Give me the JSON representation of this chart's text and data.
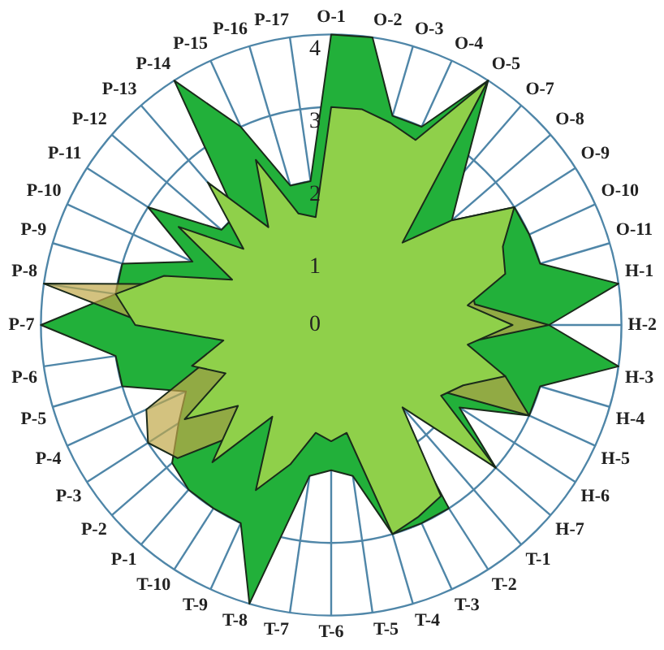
{
  "chart_data": {
    "type": "radar",
    "categories": [
      "O-1",
      "O-2",
      "O-3",
      "O-4",
      "O-5",
      "O-7",
      "O-8",
      "O-9",
      "O-10",
      "O-11",
      "H-1",
      "H-2",
      "H-3",
      "H-4",
      "H-5",
      "H-6",
      "H-7",
      "T-1",
      "T-2",
      "T-3",
      "T-4",
      "T-5",
      "T-6",
      "T-7",
      "T-8",
      "T-9",
      "T-10",
      "P-1",
      "P-2",
      "P-3",
      "P-4",
      "P-5",
      "P-6",
      "P-7",
      "P-8",
      "P-9",
      "P-10",
      "P-11",
      "P-12",
      "P-13",
      "P-14",
      "P-15",
      "P-16",
      "P-17"
    ],
    "series": [
      {
        "color": "#22b03a",
        "values": [
          4,
          4,
          3,
          3,
          4,
          2.8,
          2.2,
          3,
          3,
          3,
          4,
          3,
          4,
          3,
          3,
          2.1,
          3,
          1.1,
          3,
          3,
          3,
          2.1,
          2,
          2.1,
          4,
          3,
          3,
          3,
          2.9,
          2.5,
          2.2,
          3,
          3,
          4,
          3,
          3,
          2.1,
          3,
          2,
          2,
          4,
          3,
          2,
          2
        ]
      },
      {
        "color": "#c0a848",
        "values": [
          2,
          2,
          2,
          2,
          2.5,
          1.4,
          1.8,
          2,
          2,
          2,
          2,
          3,
          1.8,
          2.5,
          3,
          1.6,
          2,
          1.2,
          2,
          2,
          2,
          1.4,
          1.5,
          1.4,
          1.8,
          2,
          1.5,
          2,
          2.8,
          3,
          2.8,
          1.8,
          1.4,
          2.5,
          4,
          2,
          1.4,
          2,
          1.5,
          2,
          1.5,
          2,
          1.5,
          1.4
        ]
      },
      {
        "color": "#8fd04a",
        "values": [
          3,
          3,
          2.9,
          2.8,
          4,
          1.5,
          2.2,
          3,
          2.6,
          2.5,
          1.9,
          2.5,
          1.9,
          2.5,
          2,
          1.8,
          3,
          1.5,
          2.8,
          2.9,
          3,
          1.5,
          1.6,
          1.5,
          2,
          2.5,
          1.5,
          2.5,
          1.7,
          2.4,
          1.6,
          2,
          1.5,
          2.7,
          3,
          2.4,
          1.5,
          2.5,
          1.6,
          2.6,
          1.6,
          2.5,
          1.6,
          1.5
        ]
      }
    ],
    "ylim": [
      0,
      4
    ],
    "yticks": [
      0,
      1,
      2,
      3,
      4
    ],
    "grid": true,
    "legend": false,
    "marker": "none"
  }
}
